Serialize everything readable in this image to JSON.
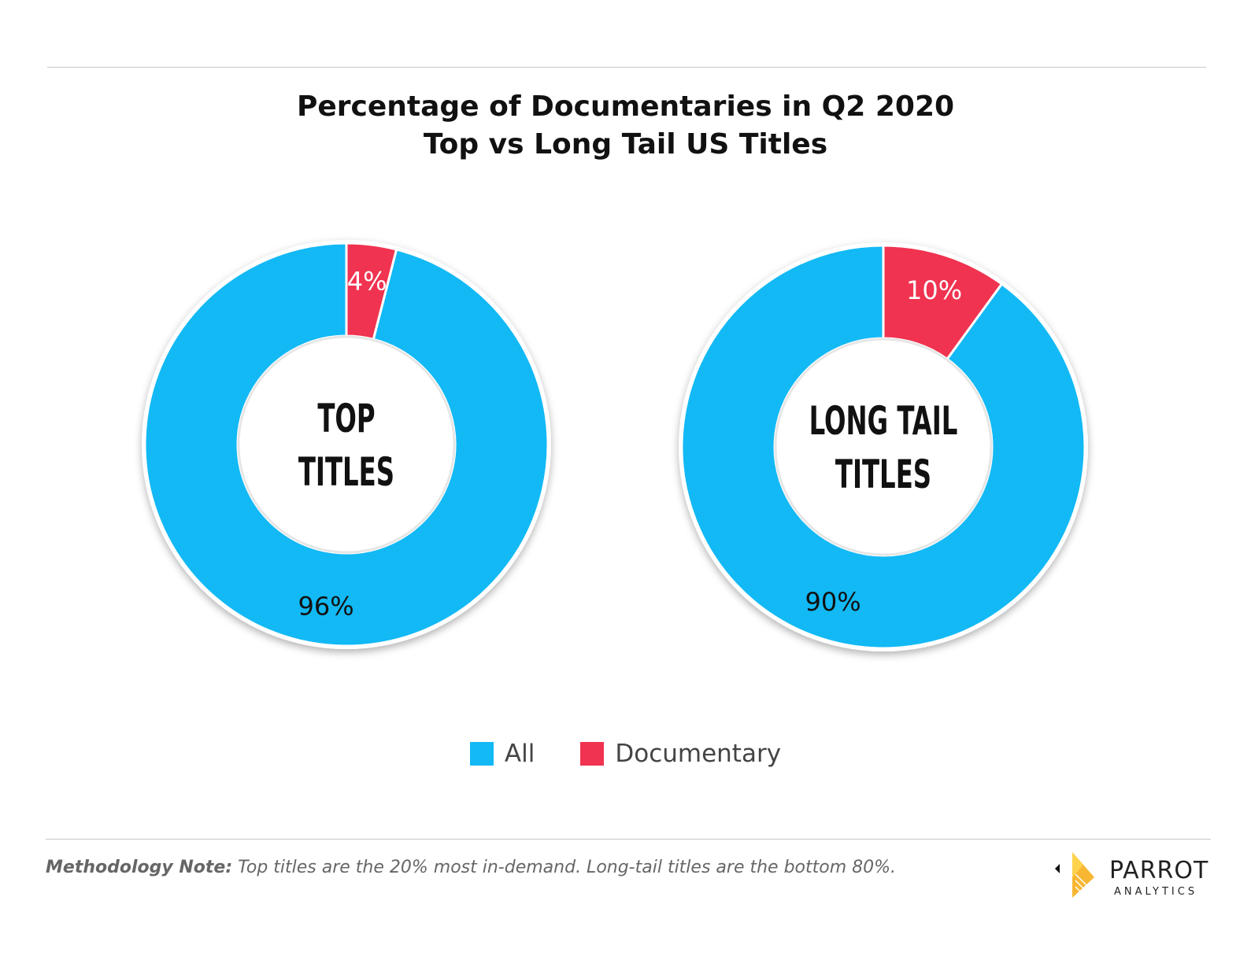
{
  "chart_data": [
    {
      "type": "pie",
      "title": "Percentage of Documentaries in Q2 2020",
      "subtitle": "Top vs Long Tail US Titles",
      "center_label": [
        "TOP",
        "TITLES"
      ],
      "slices": [
        {
          "name": "Documentary",
          "value": 4,
          "label": "4%"
        },
        {
          "name": "All",
          "value": 96,
          "label": "96%"
        }
      ]
    },
    {
      "type": "pie",
      "center_label": [
        "LONG TAIL",
        "TITLES"
      ],
      "slices": [
        {
          "name": "Documentary",
          "value": 10,
          "label": "10%"
        },
        {
          "name": "All",
          "value": 90,
          "label": "90%"
        }
      ]
    }
  ],
  "legend": {
    "placement": "bottom-center",
    "items": [
      {
        "label": "All",
        "color": "#12b9f5"
      },
      {
        "label": "Documentary",
        "color": "#f03350"
      }
    ]
  },
  "colors": {
    "All": "#12b9f5",
    "Documentary": "#f03350"
  },
  "footer": {
    "note_label": "Methodology Note:",
    "note_text": " Top titles are the 20% most in-demand. Long-tail titles are the bottom 80%."
  },
  "logo": {
    "word": "PARROT",
    "sub": "ANALYTICS"
  }
}
